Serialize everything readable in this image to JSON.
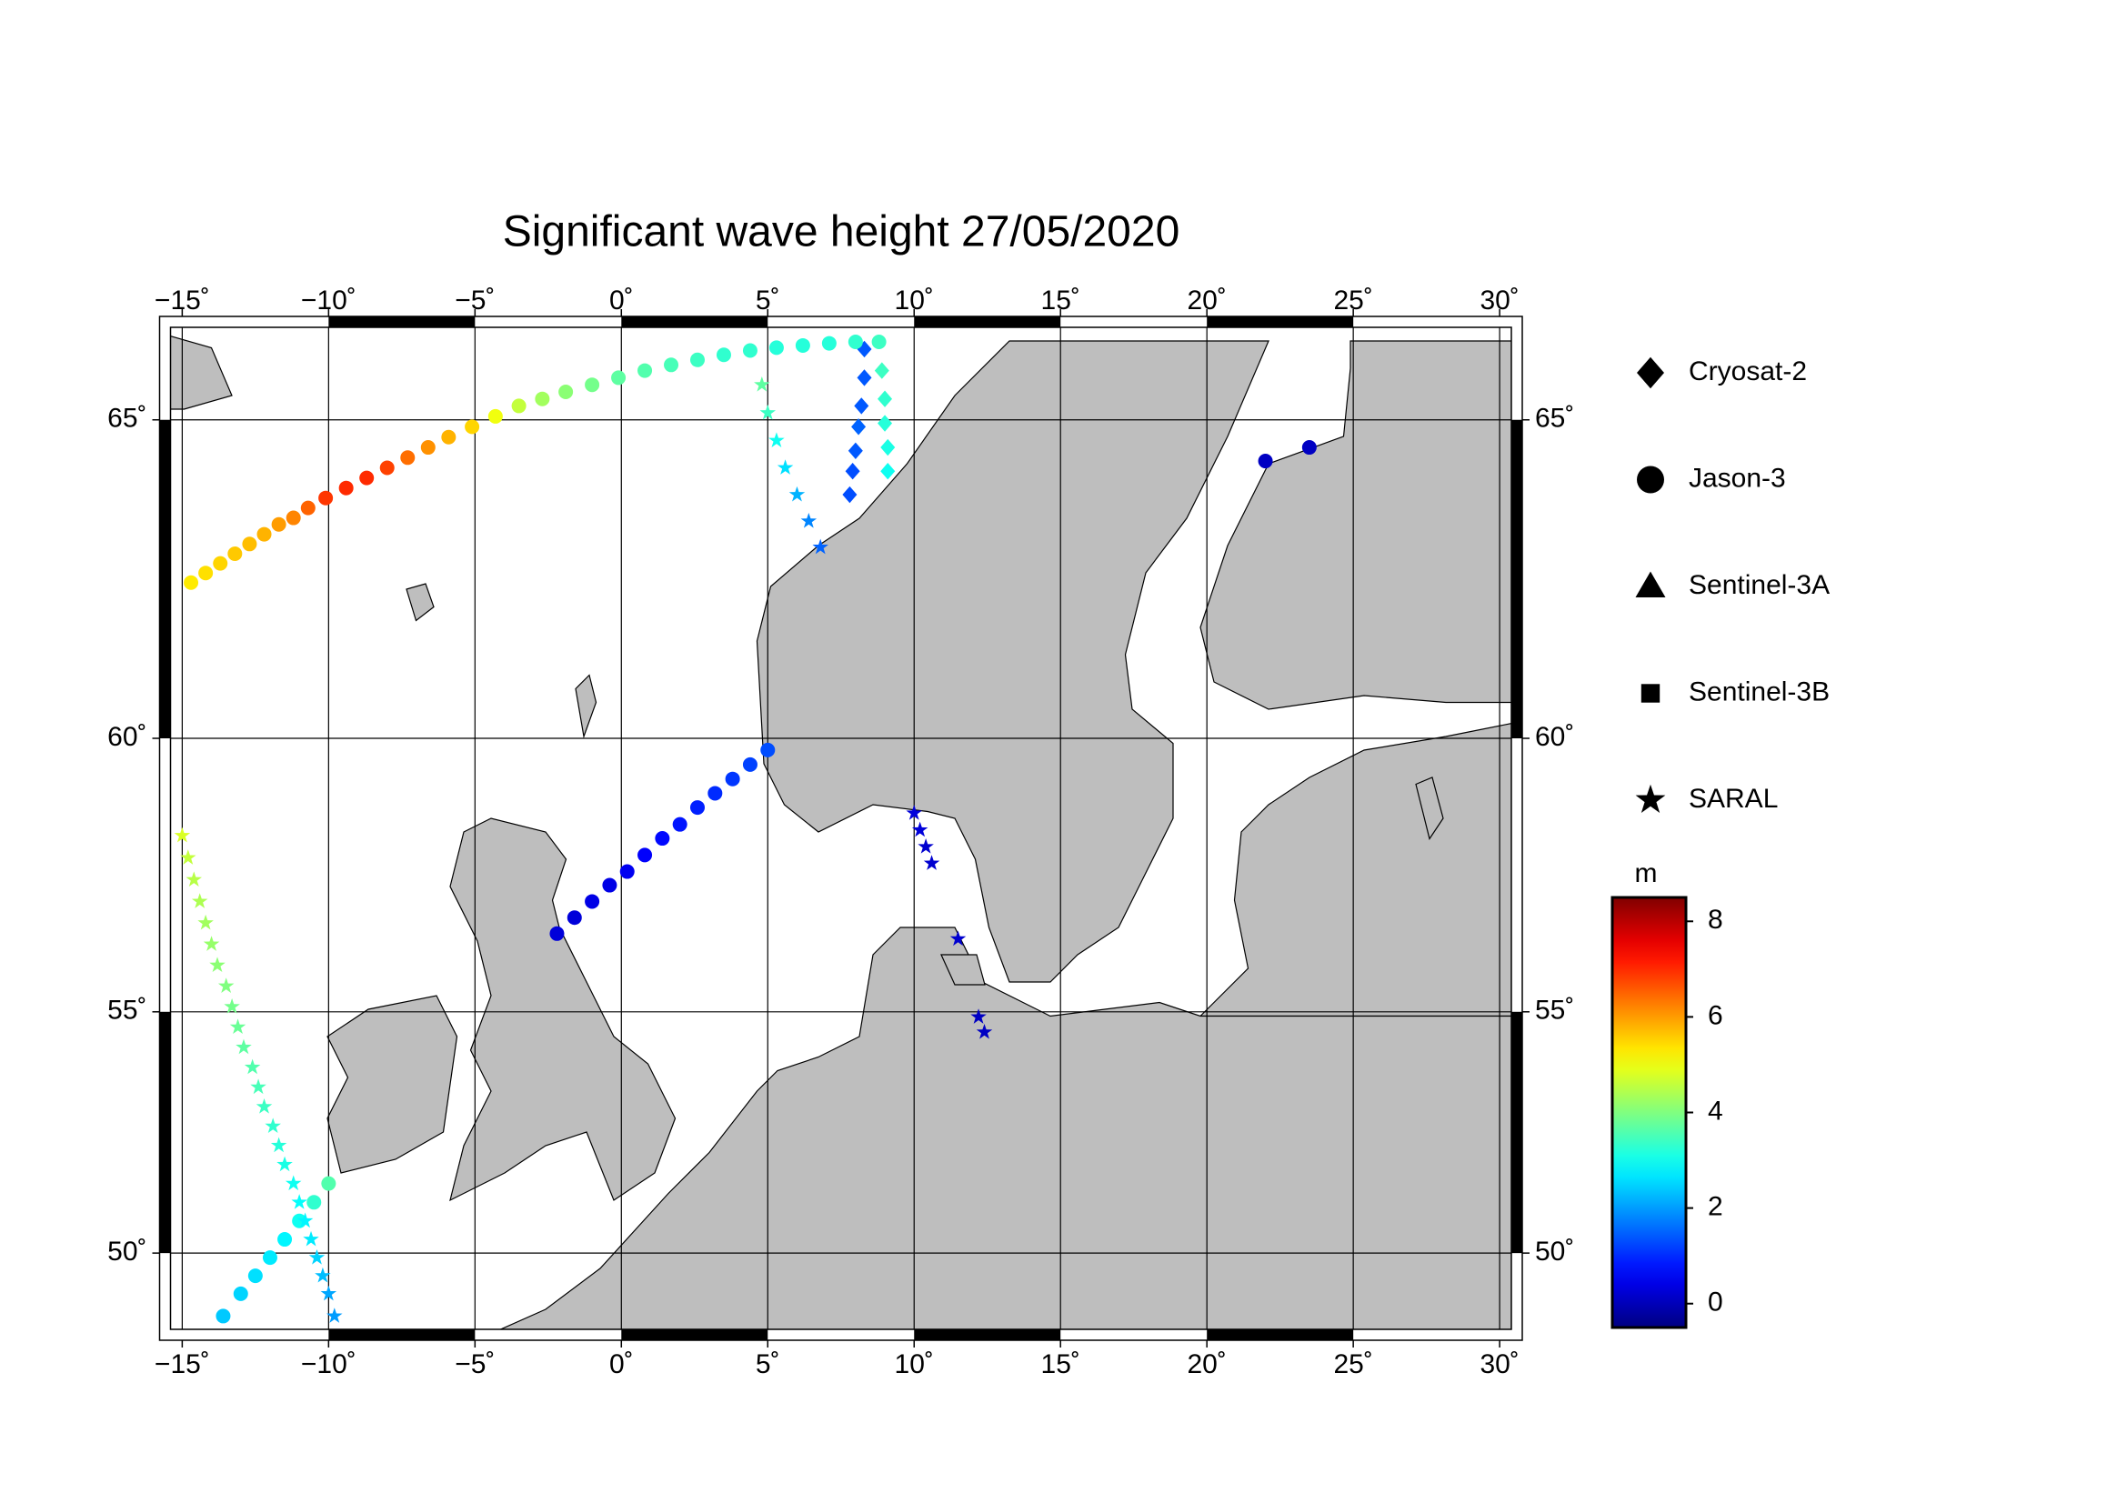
{
  "chart_data": {
    "type": "scatter",
    "projection": "mercator",
    "title": "Significant wave height 27/05/2020",
    "xlim": [
      -15.4,
      30.4
    ],
    "ylim": [
      48.3,
      66.3
    ],
    "xticks": [
      {
        "value": -15,
        "label": "−15˚"
      },
      {
        "value": -10,
        "label": "−10˚"
      },
      {
        "value": -5,
        "label": "−5˚"
      },
      {
        "value": 0,
        "label": "0˚"
      },
      {
        "value": 5,
        "label": "5˚"
      },
      {
        "value": 10,
        "label": "10˚"
      },
      {
        "value": 15,
        "label": "15˚"
      },
      {
        "value": 20,
        "label": "20˚"
      },
      {
        "value": 25,
        "label": "25˚"
      },
      {
        "value": 30,
        "label": "30˚"
      }
    ],
    "yticks": [
      {
        "value": 50,
        "label": "50˚"
      },
      {
        "value": 55,
        "label": "55˚"
      },
      {
        "value": 60,
        "label": "60˚"
      },
      {
        "value": 65,
        "label": "65˚"
      }
    ],
    "grid": true,
    "colorbar": {
      "label": "m",
      "colormap": "jet",
      "lim": [
        -0.5,
        8.5
      ],
      "ticks": [
        0,
        2,
        4,
        6,
        8
      ]
    },
    "series": [
      {
        "name": "Cryosat-2",
        "marker": "diamond",
        "x": [
          8.3,
          8.3,
          8.2,
          8.1,
          8.0,
          7.9,
          7.8,
          8.9,
          9.0,
          9.0,
          9.1,
          9.1
        ],
        "y": [
          66.0,
          65.6,
          65.2,
          64.9,
          64.55,
          64.25,
          63.9,
          65.7,
          65.3,
          64.95,
          64.6,
          64.25
        ],
        "values": [
          1.4,
          1.4,
          1.4,
          1.5,
          1.4,
          1.3,
          1.3,
          3.4,
          3.3,
          3.2,
          3.1,
          3.0
        ]
      },
      {
        "name": "Jason-3",
        "marker": "circle",
        "x": [
          -14.7,
          -14.2,
          -13.7,
          -13.2,
          -12.7,
          -12.2,
          -11.7,
          -11.2,
          -10.7,
          -10.1,
          -9.4,
          -8.7,
          -8.0,
          -7.3,
          -6.6,
          -5.9,
          -5.1,
          -4.3,
          -3.5,
          -2.7,
          -1.9,
          -1.0,
          -0.1,
          0.8,
          1.7,
          2.6,
          3.5,
          4.4,
          5.3,
          6.2,
          7.1,
          8.0,
          8.8,
          -2.2,
          -1.6,
          -1.0,
          -0.4,
          0.2,
          0.8,
          1.4,
          2.0,
          2.6,
          3.2,
          3.8,
          4.4,
          5.0,
          -10.0,
          -10.5,
          -11.0,
          -11.5,
          -12.0,
          -12.5,
          -13.0,
          -13.6,
          22.0,
          23.5
        ],
        "y": [
          62.55,
          62.7,
          62.85,
          63.0,
          63.15,
          63.3,
          63.45,
          63.55,
          63.7,
          63.85,
          64.0,
          64.15,
          64.3,
          64.45,
          64.6,
          64.75,
          64.9,
          65.05,
          65.2,
          65.3,
          65.4,
          65.5,
          65.6,
          65.7,
          65.78,
          65.85,
          65.92,
          65.98,
          66.02,
          66.05,
          66.08,
          66.1,
          66.1,
          56.5,
          56.8,
          57.1,
          57.4,
          57.65,
          57.95,
          58.25,
          58.5,
          58.8,
          59.05,
          59.3,
          59.55,
          59.8,
          51.5,
          51.1,
          50.7,
          50.3,
          49.9,
          49.5,
          49.1,
          48.6,
          64.4,
          64.6
        ],
        "values": [
          5.3,
          5.4,
          5.5,
          5.6,
          5.7,
          5.8,
          6.0,
          6.2,
          6.5,
          6.9,
          7.0,
          7.0,
          6.8,
          6.4,
          6.1,
          5.8,
          5.5,
          5.0,
          4.6,
          4.3,
          4.1,
          3.9,
          3.7,
          3.6,
          3.5,
          3.4,
          3.3,
          3.3,
          3.2,
          3.2,
          3.2,
          3.3,
          3.4,
          0.3,
          0.3,
          0.4,
          0.4,
          0.5,
          0.6,
          0.7,
          0.8,
          0.9,
          1.0,
          1.1,
          1.2,
          1.3,
          3.6,
          3.3,
          3.0,
          2.8,
          2.7,
          2.6,
          2.5,
          2.4,
          0.1,
          0.1
        ]
      },
      {
        "name": "Sentinel-3A",
        "marker": "triangle",
        "x": [],
        "y": [],
        "values": []
      },
      {
        "name": "Sentinel-3B",
        "marker": "square",
        "x": [],
        "y": [],
        "values": []
      },
      {
        "name": "SARAL",
        "marker": "star",
        "x": [
          -15.0,
          -14.8,
          -14.6,
          -14.4,
          -14.2,
          -14.0,
          -13.8,
          -13.5,
          -13.3,
          -13.1,
          -12.9,
          -12.6,
          -12.4,
          -12.2,
          -11.9,
          -11.7,
          -11.5,
          -11.2,
          -11.0,
          -10.8,
          -10.6,
          -10.4,
          -10.2,
          -10.0,
          -9.8,
          4.8,
          5.0,
          5.3,
          5.6,
          6.0,
          6.4,
          6.8,
          10.0,
          10.2,
          10.4,
          10.6,
          11.5,
          12.2,
          12.4
        ],
        "y": [
          58.3,
          57.9,
          57.5,
          57.1,
          56.7,
          56.3,
          55.9,
          55.5,
          55.1,
          54.7,
          54.3,
          53.9,
          53.5,
          53.1,
          52.7,
          52.3,
          51.9,
          51.5,
          51.1,
          50.7,
          50.3,
          49.9,
          49.5,
          49.1,
          48.6,
          65.5,
          65.1,
          64.7,
          64.3,
          63.9,
          63.5,
          63.1,
          58.7,
          58.4,
          58.1,
          57.8,
          56.4,
          54.9,
          54.6
        ],
        "values": [
          4.8,
          4.6,
          4.5,
          4.4,
          4.3,
          4.2,
          4.1,
          4.0,
          3.9,
          3.8,
          3.7,
          3.6,
          3.5,
          3.4,
          3.3,
          3.2,
          3.1,
          3.0,
          2.9,
          2.8,
          2.7,
          2.5,
          2.3,
          2.1,
          2.0,
          3.7,
          3.4,
          3.0,
          2.6,
          2.2,
          1.8,
          1.5,
          0.3,
          0.3,
          0.2,
          0.2,
          0.2,
          0.1,
          0.1
        ]
      }
    ]
  }
}
